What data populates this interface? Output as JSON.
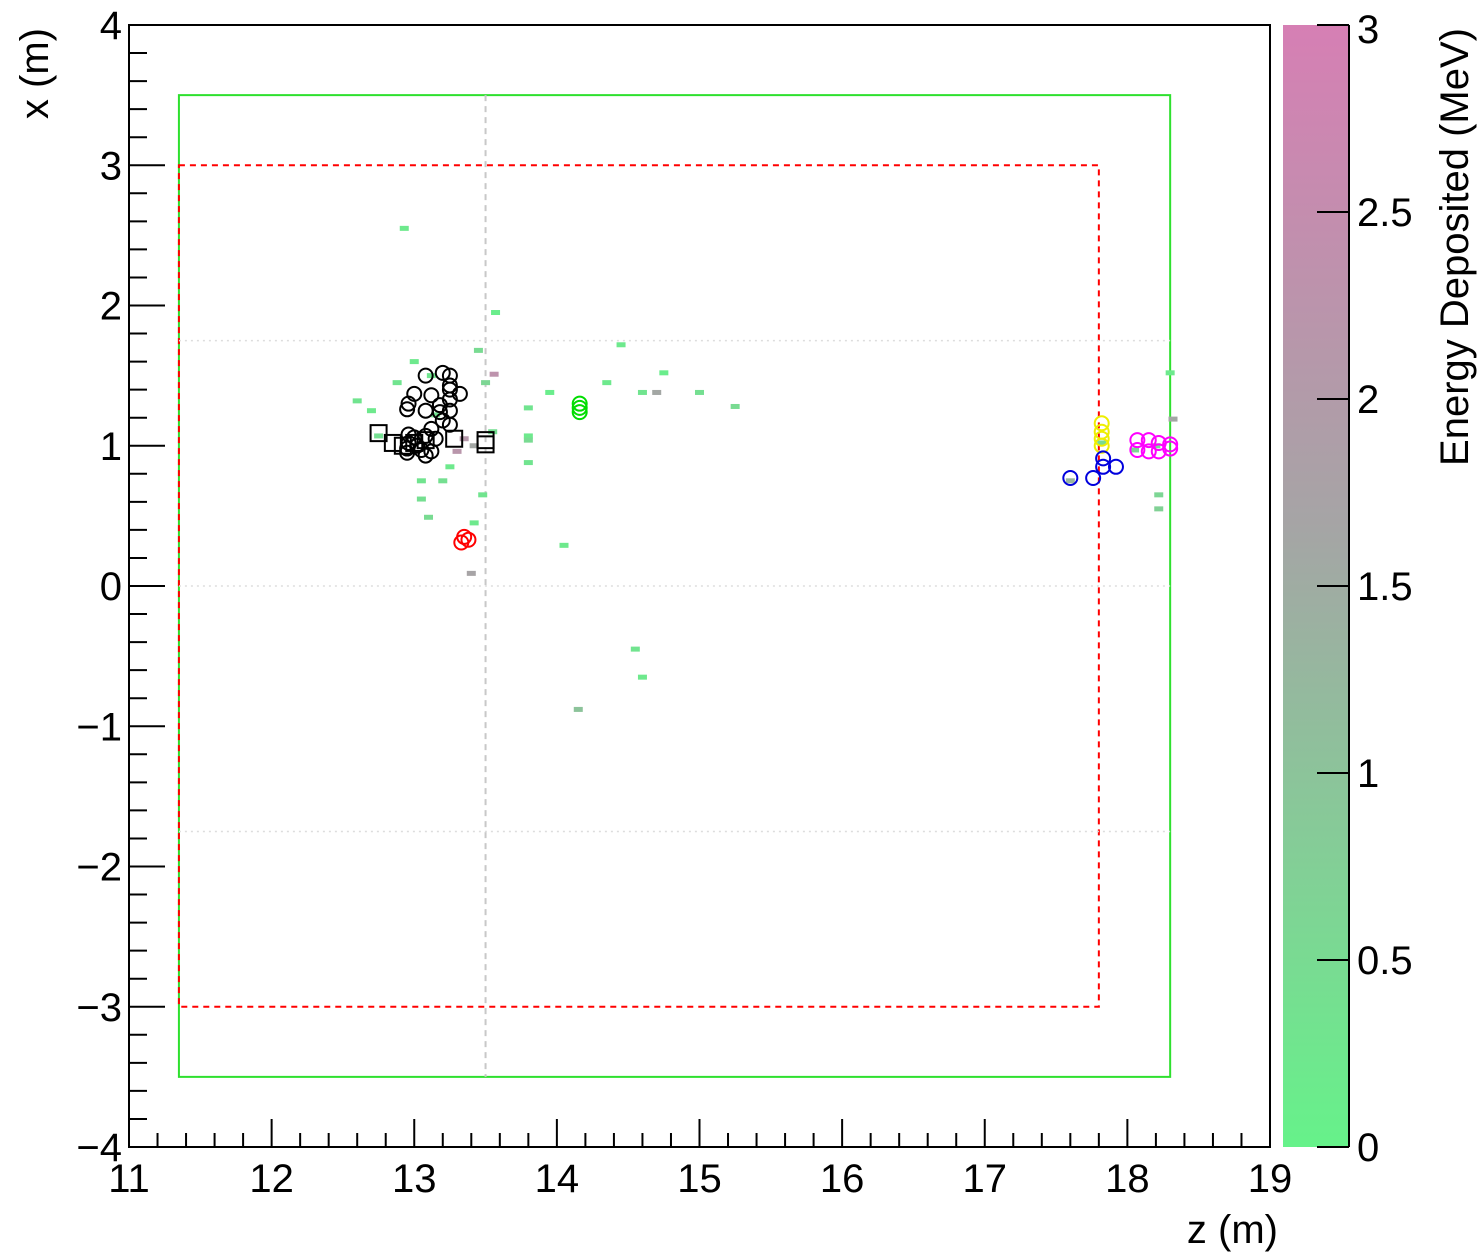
{
  "chart_data": {
    "type": "scatter",
    "xlabel": "z (m)",
    "ylabel": "x (m)",
    "xlim": [
      11,
      19
    ],
    "ylim": [
      -4,
      4
    ],
    "x_ticks": [
      "11",
      "12",
      "13",
      "14",
      "15",
      "16",
      "17",
      "18",
      "19"
    ],
    "y_ticks": [
      "−4",
      "−3",
      "−2",
      "−1",
      "0",
      "1",
      "2",
      "3",
      "4"
    ],
    "colorbar": {
      "label": "Energy Deposited (MeV)",
      "range": [
        0,
        3
      ],
      "ticks": [
        "0",
        "0.5",
        "1",
        "1.5",
        "2",
        "2.5",
        "3"
      ],
      "color_low": "#66f28a",
      "color_mid": "#a5a5a5",
      "color_high": "#d67fb4"
    },
    "outlines": [
      {
        "kind": "solid-rect",
        "color": "#2ee02e",
        "z": [
          11.35,
          18.3
        ],
        "x": [
          -3.5,
          3.5
        ]
      },
      {
        "kind": "dashed-rect",
        "color": "#ff0000",
        "z": [
          11.35,
          17.8
        ],
        "x": [
          -3.0,
          3.0
        ]
      },
      {
        "kind": "dashed-vline",
        "color": "#c8c8c8",
        "z": 13.5,
        "x": [
          -3.5,
          3.5
        ]
      },
      {
        "kind": "dotted-hline",
        "color": "#dddddd",
        "x": 1.75
      },
      {
        "kind": "dotted-hline",
        "color": "#dddddd",
        "x": 0.0
      },
      {
        "kind": "dotted-hline",
        "color": "#dddddd",
        "x": -1.75
      }
    ],
    "hits": [
      {
        "z": 12.93,
        "x": 2.55,
        "e": 0.2
      },
      {
        "z": 13.57,
        "x": 1.95,
        "e": 0.1
      },
      {
        "z": 13.45,
        "x": 1.68,
        "e": 0.5
      },
      {
        "z": 13.0,
        "x": 1.6,
        "e": 0.2
      },
      {
        "z": 12.88,
        "x": 1.45,
        "e": 0.3
      },
      {
        "z": 13.12,
        "x": 1.5,
        "e": 0.25
      },
      {
        "z": 13.5,
        "x": 1.45,
        "e": 0.6
      },
      {
        "z": 13.56,
        "x": 1.51,
        "e": 2.3
      },
      {
        "z": 12.6,
        "x": 1.32,
        "e": 0.3
      },
      {
        "z": 12.7,
        "x": 1.25,
        "e": 0.2
      },
      {
        "z": 12.75,
        "x": 1.07,
        "e": 0.4
      },
      {
        "z": 13.15,
        "x": 1.22,
        "e": 0.3
      },
      {
        "z": 13.55,
        "x": 1.1,
        "e": 0.4
      },
      {
        "z": 13.8,
        "x": 1.27,
        "e": 0.3
      },
      {
        "z": 13.8,
        "x": 1.07,
        "e": 0.2
      },
      {
        "z": 13.8,
        "x": 1.04,
        "e": 0.5
      },
      {
        "z": 13.95,
        "x": 1.38,
        "e": 0.1
      },
      {
        "z": 13.8,
        "x": 0.88,
        "e": 0.3
      },
      {
        "z": 13.25,
        "x": 0.85,
        "e": 0.2
      },
      {
        "z": 13.05,
        "x": 0.75,
        "e": 0.3
      },
      {
        "z": 13.2,
        "x": 0.75,
        "e": 0.4
      },
      {
        "z": 13.05,
        "x": 0.62,
        "e": 0.4
      },
      {
        "z": 13.48,
        "x": 0.65,
        "e": 0.3
      },
      {
        "z": 13.1,
        "x": 0.49,
        "e": 0.5
      },
      {
        "z": 13.42,
        "x": 0.45,
        "e": 0.2
      },
      {
        "z": 13.3,
        "x": 0.96,
        "e": 2.2
      },
      {
        "z": 13.35,
        "x": 1.05,
        "e": 2.1
      },
      {
        "z": 13.42,
        "x": 1.0,
        "e": 1.6
      },
      {
        "z": 14.45,
        "x": 1.72,
        "e": 0.2
      },
      {
        "z": 14.35,
        "x": 1.45,
        "e": 0.2
      },
      {
        "z": 14.6,
        "x": 1.38,
        "e": 0.3
      },
      {
        "z": 14.7,
        "x": 1.38,
        "e": 1.6
      },
      {
        "z": 14.75,
        "x": 1.52,
        "e": 0.1
      },
      {
        "z": 15.0,
        "x": 1.38,
        "e": 0.4
      },
      {
        "z": 15.25,
        "x": 1.28,
        "e": 0.5
      },
      {
        "z": 14.05,
        "x": 0.29,
        "e": 0.2
      },
      {
        "z": 14.55,
        "x": -0.45,
        "e": 0.3
      },
      {
        "z": 14.6,
        "x": -0.65,
        "e": 0.2
      },
      {
        "z": 14.15,
        "x": -0.88,
        "e": 1.0
      },
      {
        "z": 13.4,
        "x": 0.09,
        "e": 1.7
      },
      {
        "z": 18.3,
        "x": 1.52,
        "e": 0.2
      },
      {
        "z": 18.32,
        "x": 1.19,
        "e": 1.6
      },
      {
        "z": 18.22,
        "x": 0.65,
        "e": 0.6
      },
      {
        "z": 18.22,
        "x": 0.55,
        "e": 0.7
      },
      {
        "z": 17.6,
        "x": 0.75,
        "e": 1.3
      },
      {
        "z": 17.82,
        "x": 1.02,
        "e": 0.5
      },
      {
        "z": 18.05,
        "x": 0.97,
        "e": 0.6
      },
      {
        "z": 18.2,
        "x": 1.0,
        "e": 0.4
      }
    ],
    "circle_clusters": [
      {
        "color": "#000000",
        "points": [
          {
            "z": 13.2,
            "x": 1.52
          },
          {
            "z": 13.25,
            "x": 1.5
          },
          {
            "z": 13.08,
            "x": 1.5
          },
          {
            "z": 13.25,
            "x": 1.43
          },
          {
            "z": 13.25,
            "x": 1.4
          },
          {
            "z": 13.0,
            "x": 1.37
          },
          {
            "z": 13.32,
            "x": 1.37
          },
          {
            "z": 13.12,
            "x": 1.36
          },
          {
            "z": 13.25,
            "x": 1.33
          },
          {
            "z": 12.96,
            "x": 1.3
          },
          {
            "z": 12.95,
            "x": 1.26
          },
          {
            "z": 13.18,
            "x": 1.29
          },
          {
            "z": 13.08,
            "x": 1.25
          },
          {
            "z": 13.18,
            "x": 1.24
          },
          {
            "z": 13.25,
            "x": 1.25
          },
          {
            "z": 13.2,
            "x": 1.18
          },
          {
            "z": 13.25,
            "x": 1.15
          },
          {
            "z": 13.12,
            "x": 1.12
          },
          {
            "z": 12.96,
            "x": 1.08
          },
          {
            "z": 13.0,
            "x": 1.06
          },
          {
            "z": 13.08,
            "x": 1.07
          },
          {
            "z": 13.15,
            "x": 1.05
          },
          {
            "z": 12.96,
            "x": 1.02
          },
          {
            "z": 13.02,
            "x": 1.0
          },
          {
            "z": 12.95,
            "x": 0.98
          },
          {
            "z": 13.05,
            "x": 0.97
          },
          {
            "z": 12.95,
            "x": 0.95
          },
          {
            "z": 13.12,
            "x": 0.96
          },
          {
            "z": 13.08,
            "x": 0.93
          }
        ]
      },
      {
        "color": "#ff0000",
        "points": [
          {
            "z": 13.35,
            "x": 0.35
          },
          {
            "z": 13.38,
            "x": 0.33
          },
          {
            "z": 13.33,
            "x": 0.31
          }
        ]
      },
      {
        "color": "#00dd00",
        "points": [
          {
            "z": 14.16,
            "x": 1.3
          },
          {
            "z": 14.16,
            "x": 1.27
          },
          {
            "z": 14.16,
            "x": 1.24
          }
        ]
      },
      {
        "color": "#eeee00",
        "points": [
          {
            "z": 17.82,
            "x": 1.16
          },
          {
            "z": 17.82,
            "x": 1.1
          },
          {
            "z": 17.82,
            "x": 1.05
          },
          {
            "z": 17.82,
            "x": 1.0
          }
        ]
      },
      {
        "color": "#0000dd",
        "points": [
          {
            "z": 17.6,
            "x": 0.77
          },
          {
            "z": 17.76,
            "x": 0.77
          },
          {
            "z": 17.83,
            "x": 0.91
          },
          {
            "z": 17.83,
            "x": 0.85
          },
          {
            "z": 17.92,
            "x": 0.85
          }
        ]
      },
      {
        "color": "#ff00ff",
        "points": [
          {
            "z": 18.07,
            "x": 1.04
          },
          {
            "z": 18.15,
            "x": 1.04
          },
          {
            "z": 18.22,
            "x": 1.02
          },
          {
            "z": 18.3,
            "x": 1.01
          },
          {
            "z": 18.07,
            "x": 0.97
          },
          {
            "z": 18.15,
            "x": 0.96
          },
          {
            "z": 18.22,
            "x": 0.96
          },
          {
            "z": 18.3,
            "x": 0.98
          }
        ]
      }
    ],
    "square_markers": {
      "color": "#000000",
      "points": [
        {
          "z": 12.75,
          "x": 1.09
        },
        {
          "z": 12.85,
          "x": 1.02
        },
        {
          "z": 12.92,
          "x": 1.0
        },
        {
          "z": 13.0,
          "x": 1.02
        },
        {
          "z": 13.08,
          "x": 1.04
        },
        {
          "z": 13.28,
          "x": 1.05
        },
        {
          "z": 13.5,
          "x": 1.04
        },
        {
          "z": 13.5,
          "x": 1.01
        }
      ]
    }
  }
}
